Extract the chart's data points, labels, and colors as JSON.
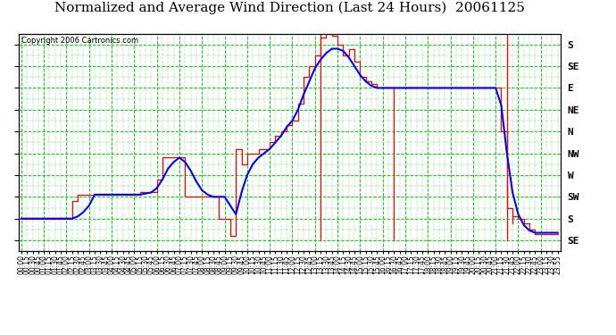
{
  "title": "Normalized and Average Wind Direction (Last 24 Hours)  20061125",
  "copyright": "Copyright 2006 Cartronics.com",
  "background_color": "#ffffff",
  "plot_bg_color": "#ffffff",
  "y_tick_labels": [
    "SE",
    "S",
    "SW",
    "W",
    "NW",
    "N",
    "NE",
    "E",
    "SE",
    "S"
  ],
  "ylim": [
    -0.5,
    9.5
  ],
  "x_labels": [
    "00:00",
    "00:15",
    "00:30",
    "00:45",
    "01:00",
    "01:15",
    "01:30",
    "01:45",
    "02:00",
    "02:15",
    "02:30",
    "02:45",
    "03:00",
    "03:15",
    "03:30",
    "03:45",
    "04:00",
    "04:15",
    "04:30",
    "04:45",
    "05:00",
    "05:15",
    "05:30",
    "05:45",
    "06:00",
    "06:15",
    "06:30",
    "06:45",
    "07:00",
    "07:15",
    "07:30",
    "07:45",
    "08:00",
    "08:15",
    "08:30",
    "08:45",
    "09:00",
    "09:15",
    "09:30",
    "09:45",
    "10:00",
    "10:15",
    "10:30",
    "10:45",
    "11:00",
    "11:15",
    "11:30",
    "11:45",
    "12:00",
    "12:15",
    "12:30",
    "12:45",
    "13:00",
    "13:15",
    "13:30",
    "13:45",
    "14:00",
    "14:15",
    "14:30",
    "14:45",
    "15:00",
    "15:15",
    "15:30",
    "15:45",
    "16:00",
    "16:15",
    "16:30",
    "16:45",
    "17:00",
    "17:15",
    "17:30",
    "17:45",
    "18:00",
    "18:15",
    "18:30",
    "18:45",
    "19:00",
    "19:15",
    "19:30",
    "19:45",
    "20:00",
    "20:15",
    "20:30",
    "20:45",
    "21:00",
    "21:15",
    "21:30",
    "21:45",
    "22:00",
    "22:15",
    "22:30",
    "22:45",
    "23:00",
    "23:15",
    "23:30",
    "23:55"
  ],
  "red_line_color": "#ff0000",
  "blue_line_color": "#0000ff",
  "title_fontsize": 11,
  "copyright_fontsize": 6,
  "ylabel_fontsize": 8,
  "tick_fontsize": 5.5,
  "grid_major_color": "#00dd00",
  "grid_minor_color": "#00bb00"
}
